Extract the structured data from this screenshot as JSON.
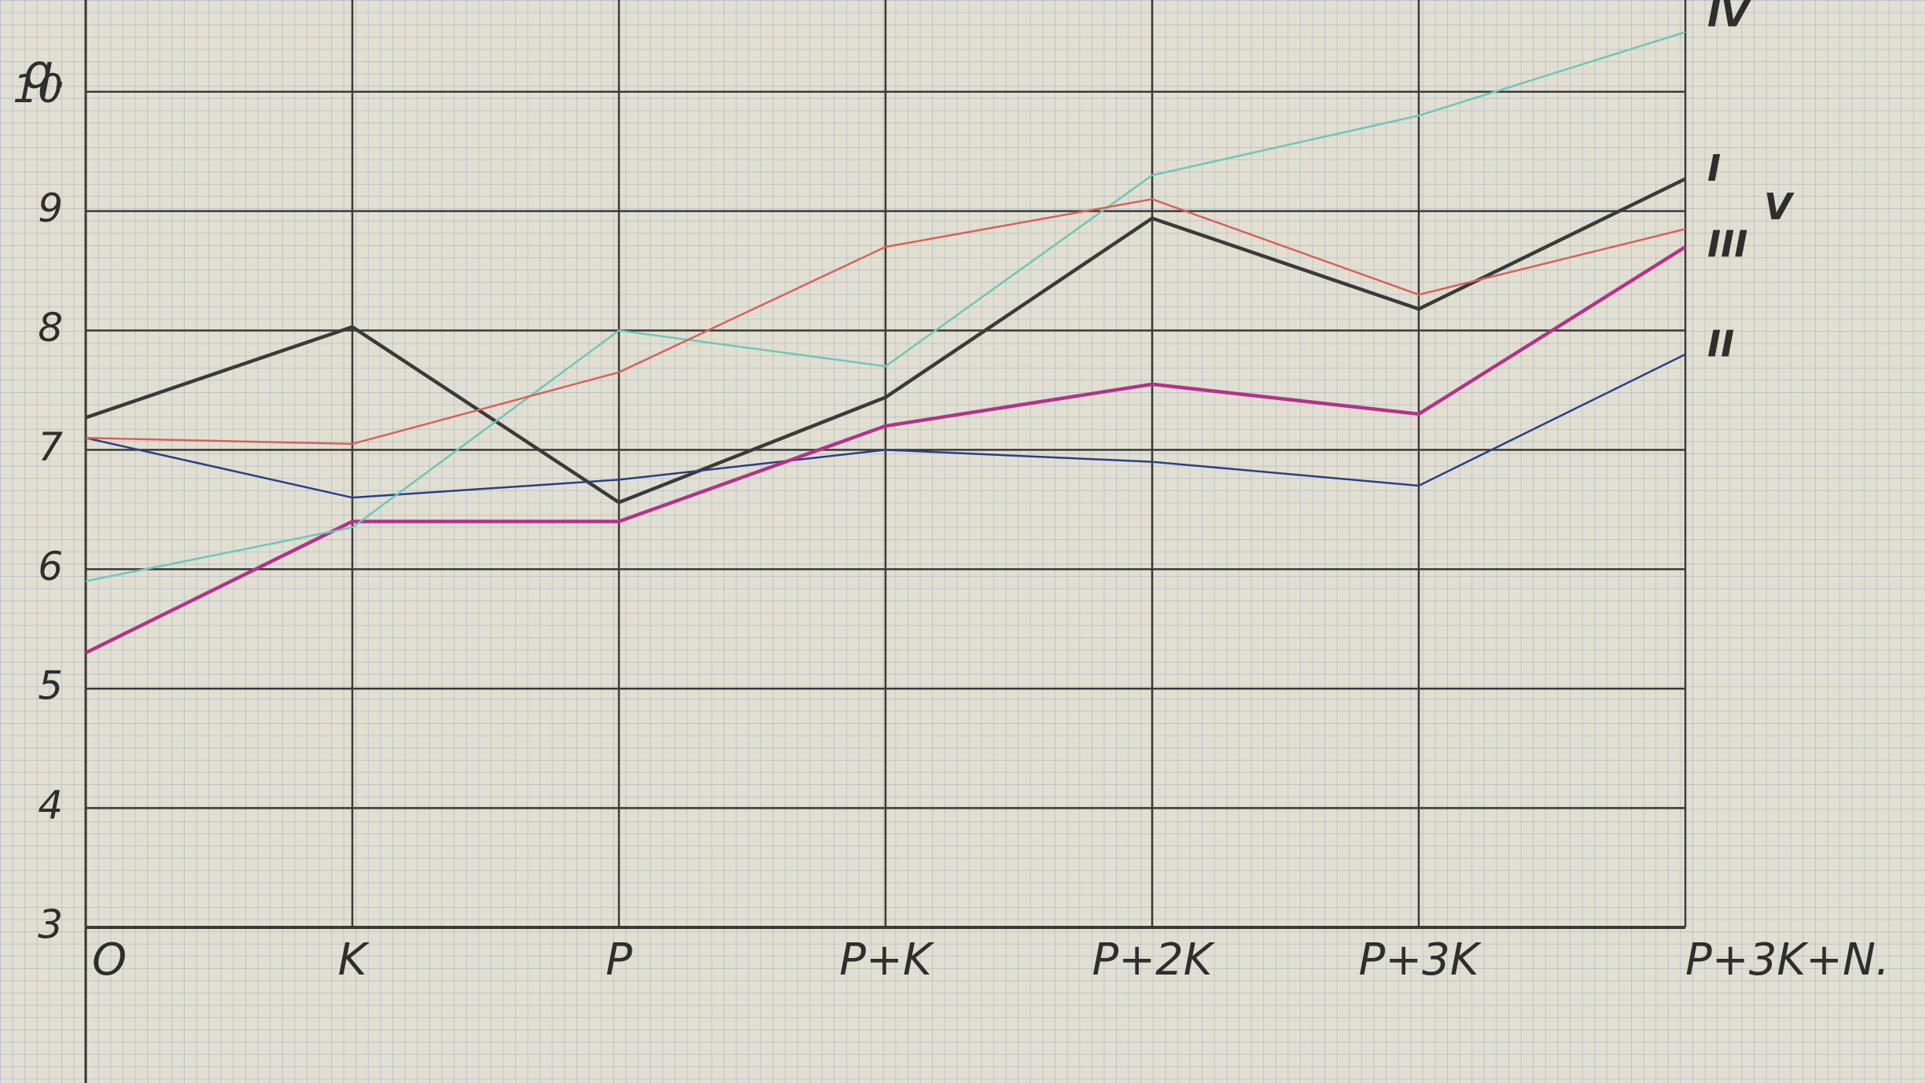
{
  "chart_data": {
    "type": "line",
    "y_label": "q.",
    "categories": [
      "O",
      "K",
      "P",
      "P+K",
      "P+2K",
      "P+3K",
      "P+3K+N."
    ],
    "series": [
      {
        "name": "I",
        "color": "#3a3a3a",
        "values": [
          7.27,
          8.03,
          6.56,
          7.44,
          8.94,
          8.18,
          9.27
        ]
      },
      {
        "name": "II",
        "color": "#2b3f86",
        "values": [
          7.1,
          6.6,
          6.75,
          7.0,
          6.9,
          6.7,
          7.8
        ]
      },
      {
        "name": "III",
        "color": "#b5318a",
        "values": [
          5.3,
          6.4,
          6.4,
          7.2,
          7.55,
          7.3,
          8.7
        ]
      },
      {
        "name": "IV",
        "color": "#6ec6b8",
        "values": [
          5.9,
          6.35,
          8.0,
          7.7,
          9.3,
          9.8,
          10.5
        ]
      },
      {
        "name": "V",
        "color": "#d9605a",
        "values": [
          7.1,
          7.05,
          7.65,
          8.7,
          9.1,
          8.3,
          8.85
        ]
      }
    ],
    "ylim": [
      3,
      10.8
    ],
    "yticks": [
      3,
      4,
      5,
      6,
      7,
      8,
      9,
      10
    ],
    "grid": true
  }
}
